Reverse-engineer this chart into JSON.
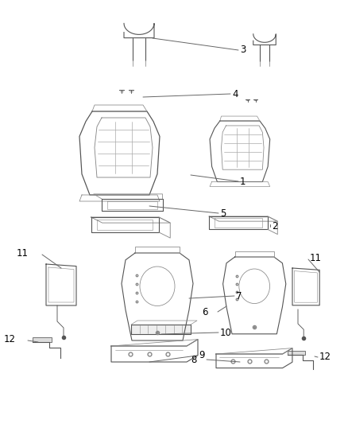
{
  "bg_color": "#ffffff",
  "line_color": "#888888",
  "dark_line": "#555555",
  "label_color": "#000000",
  "label_fontsize": 8.5,
  "figsize": [
    4.38,
    5.33
  ],
  "dpi": 100
}
